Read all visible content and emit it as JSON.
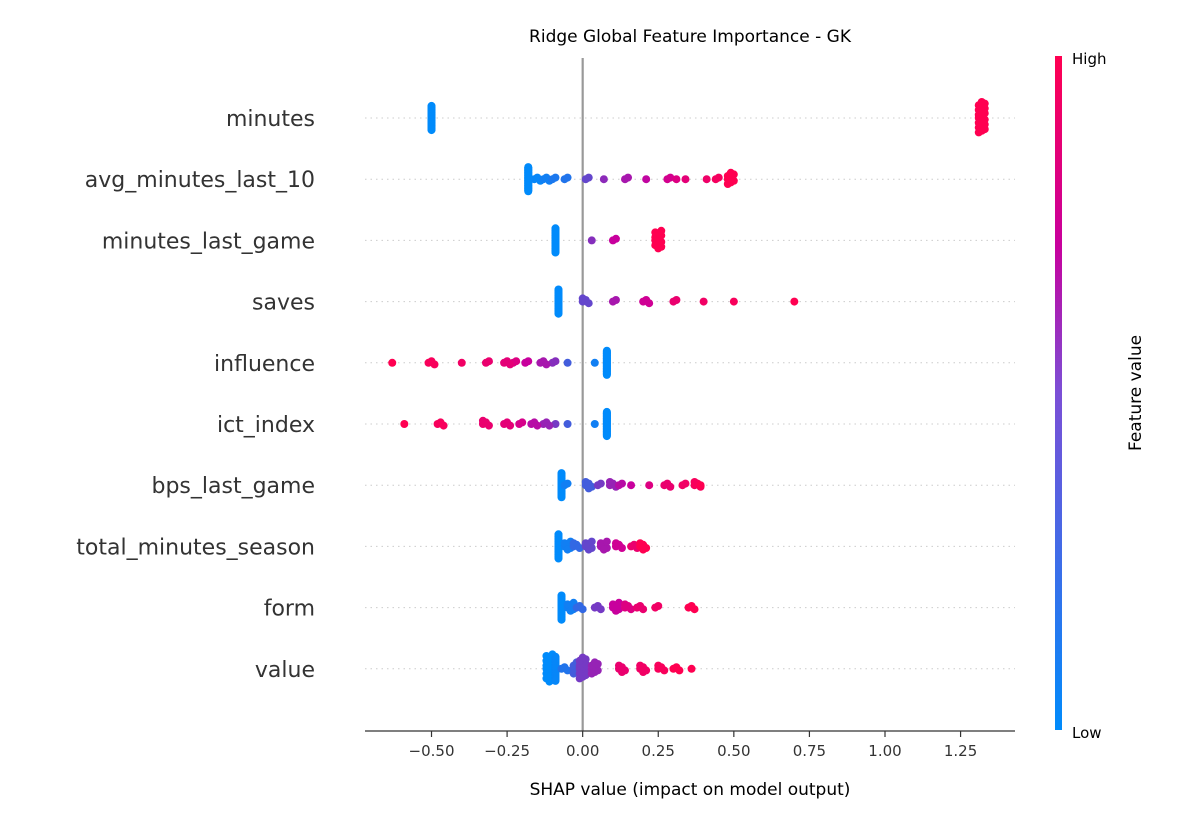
{
  "chart_data": {
    "type": "beeswarm",
    "title": "Ridge Global Feature Importance - GK",
    "xlabel": "SHAP value (impact on model output)",
    "xlim": [
      -0.72,
      1.43
    ],
    "xticks": [
      -0.5,
      -0.25,
      0.0,
      0.25,
      0.5,
      0.75,
      1.0,
      1.25
    ],
    "xtick_labels": [
      "−0.50",
      "−0.25",
      "0.00",
      "0.25",
      "0.50",
      "0.75",
      "1.00",
      "1.25"
    ],
    "colorbar": {
      "label": "Feature value",
      "high_label": "High",
      "low_label": "Low",
      "low_color": "#008bfb",
      "high_color": "#ff0051"
    },
    "zero_line_color": "#999999",
    "features": [
      {
        "name": "minutes",
        "points": [
          {
            "x": -0.5,
            "v": 0,
            "n": 40
          },
          {
            "x": 1.32,
            "v": 1,
            "n": 20
          }
        ]
      },
      {
        "name": "avg_minutes_last_10",
        "points": [
          {
            "x": -0.18,
            "v": 0.0,
            "n": 40
          },
          {
            "x": -0.15,
            "v": 0.02,
            "n": 3
          },
          {
            "x": -0.12,
            "v": 0.05,
            "n": 3
          },
          {
            "x": -0.09,
            "v": 0.08,
            "n": 2
          },
          {
            "x": -0.05,
            "v": 0.1,
            "n": 2
          },
          {
            "x": 0.02,
            "v": 0.3,
            "n": 2
          },
          {
            "x": 0.08,
            "v": 0.42,
            "n": 1
          },
          {
            "x": 0.15,
            "v": 0.5,
            "n": 2
          },
          {
            "x": 0.22,
            "v": 0.58,
            "n": 1
          },
          {
            "x": 0.29,
            "v": 0.68,
            "n": 2
          },
          {
            "x": 0.32,
            "v": 0.75,
            "n": 1
          },
          {
            "x": 0.35,
            "v": 0.8,
            "n": 1
          },
          {
            "x": 0.42,
            "v": 0.88,
            "n": 1
          },
          {
            "x": 0.45,
            "v": 0.93,
            "n": 2
          },
          {
            "x": 0.49,
            "v": 1.0,
            "n": 8
          }
        ]
      },
      {
        "name": "minutes_last_game",
        "points": [
          {
            "x": -0.09,
            "v": 0.0,
            "n": 40
          },
          {
            "x": 0.04,
            "v": 0.4,
            "n": 1
          },
          {
            "x": 0.11,
            "v": 0.6,
            "n": 2
          },
          {
            "x": 0.25,
            "v": 1.0,
            "n": 12
          }
        ]
      },
      {
        "name": "saves",
        "points": [
          {
            "x": -0.08,
            "v": 0.0,
            "n": 40
          },
          {
            "x": 0.01,
            "v": 0.3,
            "n": 4
          },
          {
            "x": 0.11,
            "v": 0.5,
            "n": 2
          },
          {
            "x": 0.21,
            "v": 0.65,
            "n": 3
          },
          {
            "x": 0.31,
            "v": 0.85,
            "n": 2
          },
          {
            "x": 0.41,
            "v": 0.9,
            "n": 1
          },
          {
            "x": 0.51,
            "v": 0.95,
            "n": 1
          },
          {
            "x": 0.71,
            "v": 1.0,
            "n": 1
          }
        ]
      },
      {
        "name": "influence",
        "points": [
          {
            "x": 0.08,
            "v": 0.0,
            "n": 40
          },
          {
            "x": 0.05,
            "v": 0.05,
            "n": 1
          },
          {
            "x": -0.04,
            "v": 0.2,
            "n": 1
          },
          {
            "x": -0.09,
            "v": 0.4,
            "n": 2
          },
          {
            "x": -0.13,
            "v": 0.5,
            "n": 3
          },
          {
            "x": -0.18,
            "v": 0.6,
            "n": 2
          },
          {
            "x": -0.22,
            "v": 0.75,
            "n": 2
          },
          {
            "x": -0.25,
            "v": 0.8,
            "n": 3
          },
          {
            "x": -0.31,
            "v": 0.85,
            "n": 2
          },
          {
            "x": -0.39,
            "v": 0.9,
            "n": 1
          },
          {
            "x": -0.5,
            "v": 0.95,
            "n": 3
          },
          {
            "x": -0.62,
            "v": 1.0,
            "n": 1
          }
        ]
      },
      {
        "name": "ict_index",
        "points": [
          {
            "x": 0.08,
            "v": 0.0,
            "n": 40
          },
          {
            "x": 0.05,
            "v": 0.05,
            "n": 1
          },
          {
            "x": -0.04,
            "v": 0.2,
            "n": 1
          },
          {
            "x": -0.08,
            "v": 0.35,
            "n": 1
          },
          {
            "x": -0.12,
            "v": 0.45,
            "n": 3
          },
          {
            "x": -0.16,
            "v": 0.55,
            "n": 3
          },
          {
            "x": -0.2,
            "v": 0.7,
            "n": 2
          },
          {
            "x": -0.25,
            "v": 0.8,
            "n": 3
          },
          {
            "x": -0.32,
            "v": 0.85,
            "n": 4
          },
          {
            "x": -0.47,
            "v": 0.95,
            "n": 3
          },
          {
            "x": -0.58,
            "v": 1.0,
            "n": 1
          }
        ]
      },
      {
        "name": "bps_last_game",
        "points": [
          {
            "x": -0.07,
            "v": 0.0,
            "n": 40
          },
          {
            "x": -0.05,
            "v": 0.05,
            "n": 2
          },
          {
            "x": 0.02,
            "v": 0.2,
            "n": 5
          },
          {
            "x": 0.06,
            "v": 0.35,
            "n": 2
          },
          {
            "x": 0.1,
            "v": 0.45,
            "n": 4
          },
          {
            "x": 0.13,
            "v": 0.55,
            "n": 2
          },
          {
            "x": 0.17,
            "v": 0.6,
            "n": 1
          },
          {
            "x": 0.23,
            "v": 0.75,
            "n": 1
          },
          {
            "x": 0.28,
            "v": 0.85,
            "n": 3
          },
          {
            "x": 0.34,
            "v": 0.9,
            "n": 2
          },
          {
            "x": 0.38,
            "v": 0.95,
            "n": 4
          },
          {
            "x": 0.4,
            "v": 1.0,
            "n": 1
          }
        ]
      },
      {
        "name": "total_minutes_season",
        "points": [
          {
            "x": -0.08,
            "v": 0.0,
            "n": 40
          },
          {
            "x": -0.05,
            "v": 0.05,
            "n": 6
          },
          {
            "x": -0.02,
            "v": 0.15,
            "n": 4
          },
          {
            "x": 0.02,
            "v": 0.3,
            "n": 6
          },
          {
            "x": 0.07,
            "v": 0.5,
            "n": 6
          },
          {
            "x": 0.12,
            "v": 0.65,
            "n": 4
          },
          {
            "x": 0.17,
            "v": 0.85,
            "n": 3
          },
          {
            "x": 0.2,
            "v": 1.0,
            "n": 5
          }
        ]
      },
      {
        "name": "form",
        "points": [
          {
            "x": -0.07,
            "v": 0.0,
            "n": 40
          },
          {
            "x": -0.04,
            "v": 0.05,
            "n": 6
          },
          {
            "x": -0.01,
            "v": 0.15,
            "n": 3
          },
          {
            "x": 0.05,
            "v": 0.35,
            "n": 3
          },
          {
            "x": 0.11,
            "v": 0.6,
            "n": 6
          },
          {
            "x": 0.15,
            "v": 0.75,
            "n": 4
          },
          {
            "x": 0.19,
            "v": 0.85,
            "n": 3
          },
          {
            "x": 0.25,
            "v": 0.9,
            "n": 2
          },
          {
            "x": 0.36,
            "v": 1.0,
            "n": 3
          }
        ]
      },
      {
        "name": "value",
        "points": [
          {
            "x": -0.11,
            "v": 0.0,
            "n": 18
          },
          {
            "x": -0.09,
            "v": 0.02,
            "n": 40
          },
          {
            "x": -0.06,
            "v": 0.1,
            "n": 3
          },
          {
            "x": -0.02,
            "v": 0.2,
            "n": 8
          },
          {
            "x": 0.0,
            "v": 0.35,
            "n": 14
          },
          {
            "x": 0.04,
            "v": 0.45,
            "n": 8
          },
          {
            "x": 0.13,
            "v": 0.85,
            "n": 5
          },
          {
            "x": 0.2,
            "v": 0.9,
            "n": 5
          },
          {
            "x": 0.26,
            "v": 0.95,
            "n": 4
          },
          {
            "x": 0.31,
            "v": 1.0,
            "n": 3
          },
          {
            "x": 0.37,
            "v": 1.0,
            "n": 1
          }
        ]
      }
    ]
  }
}
